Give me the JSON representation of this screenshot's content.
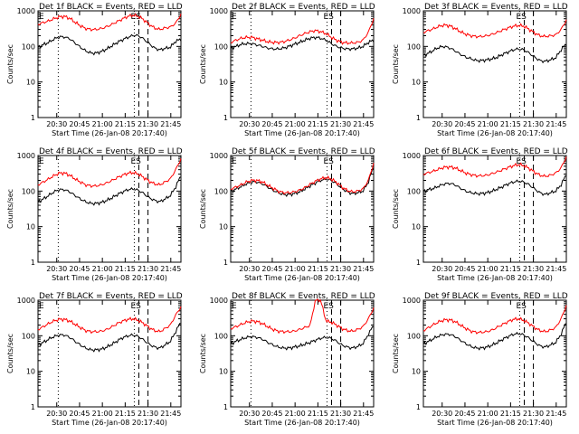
{
  "chart_data": [
    {
      "type": "line",
      "title": "Det 1f BLACK = Events, RED = LLD",
      "xlabel": "Start Time (26-Jan-08 20:17:40)",
      "ylabel": "Counts/sec",
      "x_ticks": [
        "20:30",
        "20:45",
        "21:00",
        "21:15",
        "21:30",
        "21:45"
      ],
      "y_ticks": [
        "1",
        "10",
        "100",
        "1000"
      ],
      "ylim": [
        1,
        1000
      ],
      "y_scale": "log",
      "markers": [
        "E",
        "ES"
      ],
      "series": [
        {
          "color": "#000000",
          "values": [
            95,
            112,
            130,
            160,
            185,
            185,
            165,
            125,
            95,
            75,
            65,
            65,
            72,
            85,
            105,
            130,
            155,
            180,
            205,
            200,
            160,
            120,
            90,
            80,
            88,
            95,
            140,
            160
          ]
        },
        {
          "color": "#ff0000",
          "values": [
            420,
            470,
            520,
            600,
            680,
            700,
            620,
            480,
            380,
            320,
            300,
            300,
            320,
            360,
            420,
            500,
            600,
            700,
            760,
            700,
            560,
            420,
            330,
            300,
            330,
            350,
            450,
            800
          ]
        }
      ]
    },
    {
      "type": "line",
      "title": "Det 2f BLACK = Events, RED = LLD",
      "xlabel": "Start Time (26-Jan-08 20:17:40)",
      "ylabel": "Counts/sec",
      "x_ticks": [
        "20:30",
        "20:45",
        "21:00",
        "21:15",
        "21:30",
        "21:45"
      ],
      "y_ticks": [
        "1",
        "10",
        "100",
        "1000"
      ],
      "ylim": [
        1,
        1000
      ],
      "y_scale": "log",
      "markers": [
        "E",
        "ES"
      ],
      "series": [
        {
          "color": "#000000",
          "values": [
            90,
            100,
            115,
            120,
            120,
            110,
            100,
            90,
            85,
            85,
            90,
            100,
            115,
            130,
            150,
            170,
            180,
            170,
            150,
            120,
            100,
            90,
            85,
            85,
            90,
            100,
            130,
            150
          ]
        },
        {
          "color": "#ff0000",
          "values": [
            130,
            150,
            170,
            180,
            180,
            165,
            150,
            135,
            130,
            130,
            135,
            150,
            170,
            200,
            230,
            260,
            280,
            260,
            230,
            180,
            150,
            130,
            125,
            125,
            130,
            150,
            250,
            600
          ]
        }
      ]
    },
    {
      "type": "line",
      "title": "Det 3f BLACK = Events, RED = LLD",
      "xlabel": "Start Time (26-Jan-08 20:17:40)",
      "ylabel": "Counts/sec",
      "x_ticks": [
        "20:30",
        "20:45",
        "21:00",
        "21:15",
        "21:30",
        "21:45"
      ],
      "y_ticks": [
        "1",
        "10",
        "100",
        "1000"
      ],
      "ylim": [
        1,
        1000
      ],
      "y_scale": "log",
      "markers": [
        "ES"
      ],
      "series": [
        {
          "color": "#000000",
          "values": [
            55,
            65,
            80,
            95,
            100,
            90,
            75,
            60,
            50,
            45,
            40,
            40,
            42,
            45,
            50,
            60,
            70,
            80,
            85,
            80,
            65,
            50,
            40,
            38,
            42,
            48,
            80,
            120
          ]
        },
        {
          "color": "#ff0000",
          "values": [
            250,
            280,
            320,
            370,
            400,
            380,
            320,
            260,
            220,
            200,
            190,
            190,
            200,
            220,
            250,
            290,
            330,
            370,
            390,
            370,
            300,
            240,
            200,
            190,
            200,
            210,
            300,
            550
          ]
        }
      ]
    },
    {
      "type": "line",
      "title": "Det 4f BLACK = Events, RED = LLD",
      "xlabel": "Start Time (26-Jan-08 20:17:40)",
      "ylabel": "Counts/sec",
      "x_ticks": [
        "20:30",
        "20:45",
        "21:00",
        "21:15",
        "21:30",
        "21:45"
      ],
      "y_ticks": [
        "1",
        "10",
        "100",
        "1000"
      ],
      "ylim": [
        1,
        1000
      ],
      "y_scale": "log",
      "markers": [
        "E",
        "ES"
      ],
      "series": [
        {
          "color": "#000000",
          "values": [
            50,
            60,
            75,
            95,
            110,
            110,
            95,
            75,
            60,
            50,
            45,
            45,
            48,
            55,
            65,
            80,
            95,
            110,
            115,
            105,
            85,
            65,
            55,
            50,
            60,
            75,
            130,
            280
          ]
        },
        {
          "color": "#ff0000",
          "values": [
            150,
            180,
            220,
            270,
            320,
            320,
            280,
            220,
            180,
            150,
            140,
            140,
            150,
            170,
            200,
            240,
            280,
            320,
            330,
            300,
            240,
            190,
            160,
            150,
            180,
            220,
            400,
            800
          ]
        }
      ]
    },
    {
      "type": "line",
      "title": "Det 5f BLACK = Events, RED = LLD",
      "xlabel": "Start Time (26-Jan-08 20:17:40)",
      "ylabel": "Counts/sec",
      "x_ticks": [
        "20:30",
        "20:45",
        "21:00",
        "21:15",
        "21:30",
        "21:45"
      ],
      "y_ticks": [
        "1",
        "10",
        "100",
        "1000"
      ],
      "ylim": [
        1,
        1000
      ],
      "y_scale": "log",
      "markers": [
        "E",
        "ES"
      ],
      "series": [
        {
          "color": "#000000",
          "values": [
            100,
            115,
            135,
            160,
            180,
            180,
            160,
            130,
            105,
            90,
            80,
            80,
            85,
            95,
            115,
            140,
            170,
            200,
            220,
            200,
            160,
            120,
            95,
            85,
            90,
            100,
            180,
            500
          ]
        },
        {
          "color": "#ff0000",
          "values": [
            115,
            130,
            150,
            180,
            200,
            200,
            180,
            145,
            120,
            100,
            90,
            90,
            95,
            105,
            125,
            155,
            190,
            220,
            240,
            220,
            175,
            130,
            105,
            95,
            100,
            115,
            200,
            600
          ]
        }
      ]
    },
    {
      "type": "line",
      "title": "Det 6f BLACK = Events, RED = LLD",
      "xlabel": "Start Time (26-Jan-08 20:17:40)",
      "ylabel": "Counts/sec",
      "x_ticks": [
        "20:30",
        "20:45",
        "21:00",
        "21:15",
        "21:30",
        "21:45"
      ],
      "y_ticks": [
        "1",
        "10",
        "100",
        "1000"
      ],
      "ylim": [
        1,
        1000
      ],
      "y_scale": "log",
      "markers": [
        "ES"
      ],
      "series": [
        {
          "color": "#000000",
          "values": [
            100,
            110,
            120,
            140,
            160,
            165,
            150,
            120,
            100,
            90,
            85,
            85,
            90,
            100,
            115,
            135,
            160,
            180,
            190,
            180,
            150,
            115,
            90,
            80,
            90,
            100,
            150,
            300
          ]
        },
        {
          "color": "#ff0000",
          "values": [
            300,
            330,
            370,
            420,
            470,
            480,
            450,
            380,
            320,
            290,
            270,
            270,
            280,
            310,
            350,
            400,
            460,
            520,
            560,
            520,
            430,
            340,
            280,
            260,
            280,
            320,
            450,
            900
          ]
        }
      ]
    },
    {
      "type": "line",
      "title": "Det 7f BLACK = Events, RED = LLD",
      "xlabel": "Start Time (26-Jan-08 20:17:40)",
      "ylabel": "Counts/sec",
      "x_ticks": [
        "20:30",
        "20:45",
        "21:00",
        "21:15",
        "21:30",
        "21:45"
      ],
      "y_ticks": [
        "1",
        "10",
        "100",
        "1000"
      ],
      "ylim": [
        1,
        1000
      ],
      "y_scale": "log",
      "markers": [
        "E",
        "ES"
      ],
      "series": [
        {
          "color": "#000000",
          "values": [
            55,
            65,
            80,
            95,
            105,
            105,
            90,
            70,
            55,
            45,
            40,
            40,
            42,
            48,
            58,
            72,
            88,
            100,
            105,
            95,
            75,
            58,
            48,
            45,
            55,
            70,
            130,
            250
          ]
        },
        {
          "color": "#ff0000",
          "values": [
            150,
            180,
            220,
            260,
            290,
            290,
            260,
            210,
            170,
            140,
            130,
            130,
            135,
            150,
            180,
            220,
            260,
            290,
            300,
            270,
            220,
            170,
            140,
            130,
            160,
            200,
            380,
            650
          ]
        }
      ]
    },
    {
      "type": "line",
      "title": "Det 8f BLACK = Events, RED = LLD",
      "xlabel": "Start Time (26-Jan-08 20:17:40)",
      "ylabel": "Counts/sec",
      "x_ticks": [
        "20:30",
        "20:45",
        "21:00",
        "21:15",
        "21:30",
        "21:45"
      ],
      "y_ticks": [
        "1",
        "10",
        "100",
        "1000"
      ],
      "ylim": [
        1,
        1000
      ],
      "y_scale": "log",
      "markers": [
        "E",
        "ES"
      ],
      "series": [
        {
          "color": "#000000",
          "values": [
            60,
            70,
            80,
            90,
            95,
            90,
            80,
            65,
            55,
            48,
            45,
            45,
            48,
            52,
            58,
            65,
            75,
            85,
            90,
            85,
            70,
            55,
            48,
            45,
            50,
            60,
            110,
            200
          ]
        },
        {
          "color": "#ff0000",
          "values": [
            160,
            180,
            210,
            240,
            260,
            250,
            220,
            180,
            150,
            135,
            130,
            130,
            135,
            150,
            170,
            195,
            1000,
            1000,
            260,
            240,
            200,
            160,
            140,
            135,
            150,
            180,
            300,
            600
          ]
        }
      ]
    },
    {
      "type": "line",
      "title": "Det 9f BLACK = Events, RED = LLD",
      "xlabel": "Start Time (26-Jan-08 20:17:40)",
      "ylabel": "Counts/sec",
      "x_ticks": [
        "20:30",
        "20:45",
        "21:00",
        "21:15",
        "21:30",
        "21:45"
      ],
      "y_ticks": [
        "1",
        "10",
        "100",
        "1000"
      ],
      "ylim": [
        1,
        1000
      ],
      "y_scale": "log",
      "markers": [
        "ES"
      ],
      "series": [
        {
          "color": "#000000",
          "values": [
            60,
            70,
            85,
            100,
            110,
            110,
            95,
            75,
            60,
            50,
            45,
            45,
            48,
            55,
            65,
            80,
            95,
            110,
            115,
            105,
            85,
            65,
            52,
            48,
            55,
            65,
            110,
            250
          ]
        },
        {
          "color": "#ff0000",
          "values": [
            140,
            170,
            210,
            250,
            280,
            280,
            250,
            200,
            160,
            135,
            125,
            125,
            130,
            145,
            175,
            210,
            250,
            290,
            300,
            270,
            220,
            170,
            140,
            130,
            145,
            170,
            300,
            700
          ]
        }
      ]
    }
  ]
}
